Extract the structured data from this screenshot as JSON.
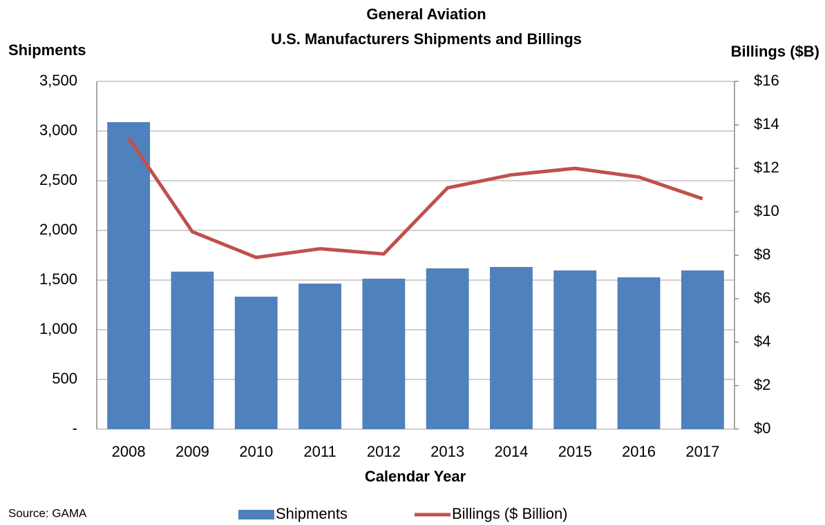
{
  "chart_data": {
    "type": "bar_line",
    "title": "General Aviation",
    "subtitle": "U.S. Manufacturers Shipments and Billings",
    "y_label": "Shipments",
    "y2_label": "Billings ($B)",
    "x_label": "Calendar Year",
    "source": "Source: GAMA",
    "categories": [
      "2008",
      "2009",
      "2010",
      "2011",
      "2012",
      "2013",
      "2014",
      "2015",
      "2016",
      "2017"
    ],
    "series": [
      {
        "name": "Shipments",
        "type": "bar",
        "color": "#4f81bd",
        "values": [
          3090,
          1585,
          1333,
          1465,
          1514,
          1618,
          1632,
          1597,
          1528,
          1597
        ]
      },
      {
        "name": "Billings ($ Billion)",
        "type": "line",
        "axis": "y2",
        "color": "#c0504d",
        "values": [
          13.4,
          9.08,
          7.9,
          8.3,
          8.06,
          11.1,
          11.7,
          12.0,
          11.6,
          10.6
        ]
      }
    ],
    "ylim": [
      0,
      3500
    ],
    "yticks": [
      {
        "value": 0,
        "label": "-"
      },
      500,
      {
        "value": 1000,
        "label": "1,000"
      },
      {
        "value": 1500,
        "label": "1,500"
      },
      {
        "value": 2000,
        "label": "2,000"
      },
      {
        "value": 2500,
        "label": "2,500"
      },
      {
        "value": 3000,
        "label": "3,000"
      },
      {
        "value": 3500,
        "label": "3,500"
      }
    ],
    "y2lim": [
      0,
      16
    ],
    "y2ticks": [
      {
        "value": 0,
        "label": "$0"
      },
      {
        "value": 2,
        "label": "$2"
      },
      {
        "value": 4,
        "label": "$4"
      },
      {
        "value": 6,
        "label": "$6"
      },
      {
        "value": 8,
        "label": "$8"
      },
      {
        "value": 10,
        "label": "$10"
      },
      {
        "value": 12,
        "label": "$12"
      },
      {
        "value": 14,
        "label": "$14"
      },
      {
        "value": 16,
        "label": "$16"
      }
    ],
    "grid": true,
    "legend": "bottom"
  }
}
